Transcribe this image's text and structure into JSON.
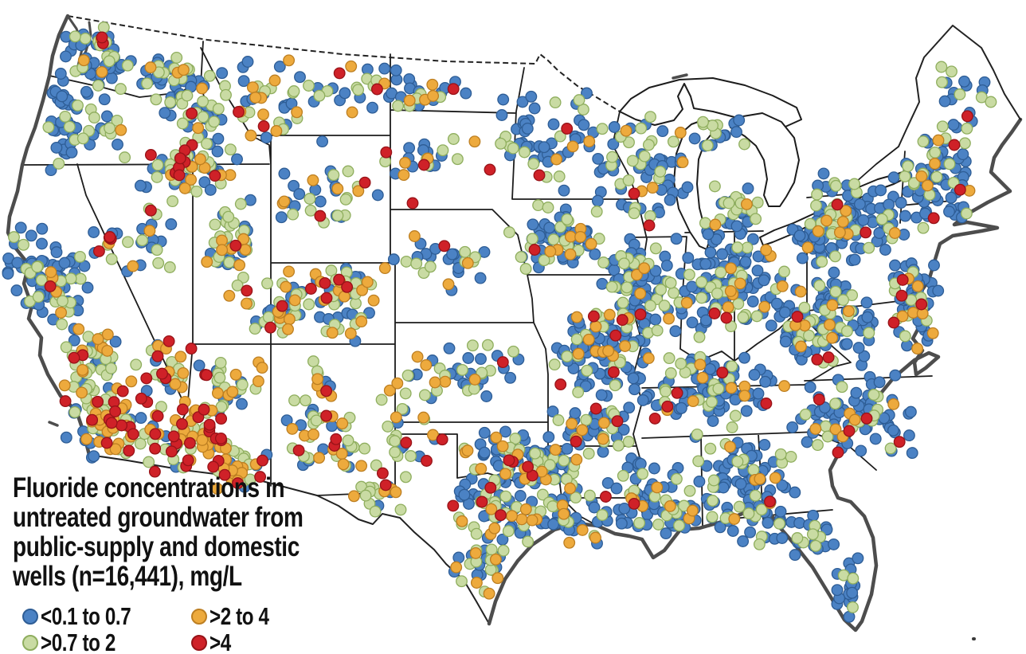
{
  "figure": {
    "title_lines": [
      "Fluoride concentrations in",
      "untreated groundwater from",
      "public-supply and domestic",
      "wells (n=16,441), mg/L"
    ],
    "legend": {
      "items": [
        {
          "label": "<0.1 to 0.7",
          "color": "#4b82c4",
          "border": "#2e5d95"
        },
        {
          "label": ">0.7 to 2",
          "color": "#c9dba3",
          "border": "#8fae5e"
        },
        {
          "label": ">2 to 4",
          "color": "#edaa3d",
          "border": "#bd7f22"
        },
        {
          "label": ">4",
          "color": "#cf2128",
          "border": "#971318"
        }
      ]
    }
  },
  "map": {
    "background": "#ffffff",
    "coast_color": "#4d4d4d",
    "state_border_color": "#1c1c1c",
    "lake_fill": "#ffffff",
    "categories": [
      {
        "name": "low",
        "label": "<0.1 to 0.7",
        "fill": "#4b82c4",
        "stroke": "#2e5d95"
      },
      {
        "name": "moderate",
        "label": ">0.7 to 2",
        "fill": "#c9dba3",
        "stroke": "#8fae5e"
      },
      {
        "name": "elevated",
        "label": ">2 to 4",
        "fill": "#edaa3d",
        "stroke": "#bd7f22"
      },
      {
        "name": "high",
        "label": ">4",
        "fill": "#cf2128",
        "stroke": "#971318"
      }
    ],
    "dot_clusters_note": "Each cluster: [cx, cy, spreadX, spreadY, nBlue, nGreen, nOrange, nRed] approximating the dot density depicted.",
    "clusters": [
      [
        120,
        82,
        40,
        48,
        40,
        13,
        2,
        0
      ],
      [
        128,
        55,
        10,
        10,
        2,
        2,
        1,
        1
      ],
      [
        210,
        100,
        38,
        32,
        18,
        12,
        3,
        0
      ],
      [
        80,
        160,
        18,
        48,
        28,
        6,
        0,
        0
      ],
      [
        125,
        165,
        32,
        28,
        8,
        9,
        1,
        0
      ],
      [
        235,
        215,
        55,
        35,
        24,
        20,
        6,
        3
      ],
      [
        262,
        135,
        48,
        40,
        22,
        16,
        4,
        1
      ],
      [
        228,
        210,
        20,
        22,
        4,
        6,
        2,
        6
      ],
      [
        355,
        125,
        62,
        45,
        18,
        14,
        8,
        2
      ],
      [
        468,
        112,
        40,
        28,
        10,
        5,
        3,
        2
      ],
      [
        415,
        250,
        55,
        40,
        15,
        11,
        5,
        2
      ],
      [
        290,
        310,
        26,
        55,
        16,
        22,
        8,
        2
      ],
      [
        345,
        400,
        32,
        26,
        5,
        8,
        5,
        1
      ],
      [
        182,
        300,
        48,
        35,
        10,
        7,
        2,
        1
      ],
      [
        135,
        302,
        24,
        12,
        2,
        2,
        2,
        4
      ],
      [
        32,
        330,
        22,
        48,
        20,
        6,
        0,
        0
      ],
      [
        75,
        360,
        38,
        52,
        42,
        14,
        4,
        1
      ],
      [
        112,
        462,
        32,
        48,
        18,
        24,
        12,
        3
      ],
      [
        138,
        532,
        48,
        42,
        14,
        24,
        18,
        14
      ],
      [
        198,
        468,
        38,
        45,
        8,
        12,
        8,
        6
      ],
      [
        238,
        548,
        48,
        38,
        8,
        18,
        22,
        22
      ],
      [
        285,
        482,
        42,
        32,
        9,
        12,
        8,
        3
      ],
      [
        302,
        592,
        32,
        26,
        5,
        10,
        12,
        4
      ],
      [
        388,
        522,
        26,
        58,
        9,
        13,
        10,
        3
      ],
      [
        432,
        562,
        26,
        36,
        5,
        8,
        5,
        2
      ],
      [
        432,
        375,
        36,
        48,
        18,
        17,
        12,
        5
      ],
      [
        362,
        368,
        26,
        30,
        7,
        8,
        4,
        1
      ],
      [
        532,
        110,
        48,
        28,
        13,
        5,
        4,
        1
      ],
      [
        540,
        200,
        55,
        30,
        11,
        6,
        4,
        2
      ],
      [
        560,
        330,
        68,
        30,
        15,
        8,
        4,
        1
      ],
      [
        590,
        465,
        68,
        35,
        20,
        12,
        4,
        1
      ],
      [
        630,
        570,
        55,
        28,
        24,
        12,
        6,
        2
      ],
      [
        515,
        530,
        38,
        52,
        6,
        13,
        6,
        3
      ],
      [
        472,
        612,
        40,
        30,
        4,
        11,
        4,
        2
      ],
      [
        628,
        640,
        56,
        50,
        38,
        22,
        10,
        3
      ],
      [
        712,
        645,
        42,
        36,
        28,
        9,
        6,
        1
      ],
      [
        600,
        708,
        30,
        42,
        8,
        12,
        6,
        0
      ],
      [
        685,
        585,
        45,
        32,
        26,
        12,
        6,
        2
      ],
      [
        692,
        172,
        60,
        56,
        42,
        12,
        3,
        1
      ],
      [
        702,
        300,
        55,
        36,
        36,
        20,
        7,
        1
      ],
      [
        802,
        210,
        46,
        56,
        38,
        19,
        4,
        1
      ],
      [
        902,
        172,
        52,
        22,
        9,
        8,
        1,
        0
      ],
      [
        930,
        270,
        40,
        38,
        14,
        12,
        2,
        0
      ],
      [
        800,
        372,
        40,
        66,
        54,
        24,
        8,
        2
      ],
      [
        745,
        440,
        54,
        46,
        52,
        14,
        8,
        4
      ],
      [
        908,
        360,
        70,
        56,
        88,
        28,
        10,
        2
      ],
      [
        890,
        490,
        86,
        36,
        70,
        18,
        8,
        5
      ],
      [
        748,
        535,
        46,
        36,
        28,
        10,
        5,
        3
      ],
      [
        812,
        622,
        50,
        44,
        42,
        12,
        5,
        1
      ],
      [
        932,
        592,
        60,
        50,
        58,
        18,
        5,
        1
      ],
      [
        872,
        648,
        42,
        16,
        12,
        5,
        2,
        0
      ],
      [
        1032,
        410,
        60,
        52,
        80,
        24,
        8,
        3
      ],
      [
        1065,
        282,
        70,
        52,
        88,
        28,
        8,
        2
      ],
      [
        1170,
        225,
        48,
        55,
        55,
        16,
        5,
        2
      ],
      [
        1212,
        122,
        38,
        42,
        12,
        8,
        0,
        1
      ],
      [
        1145,
        382,
        30,
        46,
        38,
        12,
        6,
        3
      ],
      [
        1075,
        520,
        66,
        46,
        62,
        14,
        5,
        3
      ],
      [
        952,
        660,
        52,
        24,
        22,
        8,
        1,
        0
      ],
      [
        1028,
        678,
        30,
        26,
        14,
        6,
        0,
        0
      ],
      [
        1066,
        742,
        20,
        40,
        16,
        3,
        0,
        0
      ]
    ],
    "singles_note": "Notable individual dots: [x, y, categoryIndex]",
    "singles": [
      [
        1066,
        541,
        3
      ],
      [
        1052,
        568,
        3
      ],
      [
        1058,
        548,
        2
      ],
      [
        1198,
        182,
        3
      ],
      [
        1122,
        405,
        3
      ],
      [
        1133,
        397,
        2
      ],
      [
        605,
        630,
        3
      ],
      [
        518,
        255,
        3
      ],
      [
        615,
        213,
        3
      ],
      [
        677,
        220,
        3
      ],
      [
        815,
        283,
        3
      ],
      [
        128,
        47,
        3
      ],
      [
        863,
        235,
        0
      ],
      [
        915,
        255,
        1
      ],
      [
        930,
        255,
        1
      ]
    ]
  },
  "chart_data": {
    "type": "dot-density-map",
    "title": "Fluoride concentrations in untreated groundwater from public-supply and domestic wells (n=16,441), mg/L",
    "region": "conterminous United States",
    "n_sites": "16,441",
    "unit": "mg/L",
    "legend_position": "bottom-left",
    "categories": [
      {
        "label": "<0.1 to 0.7",
        "color": "#4b82c4"
      },
      {
        "label": ">0.7 to 2",
        "color": "#c9dba3"
      },
      {
        "label": ">2 to 4",
        "color": "#edaa3d"
      },
      {
        "label": ">4",
        "color": "#cf2128"
      }
    ]
  }
}
